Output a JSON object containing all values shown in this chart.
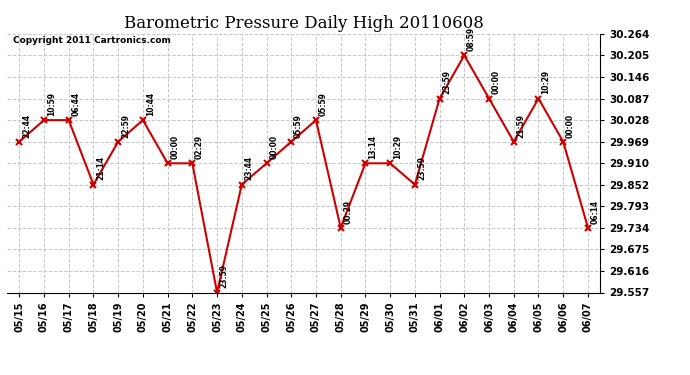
{
  "title": "Barometric Pressure Daily High 20110608",
  "copyright": "Copyright 2011 Cartronics.com",
  "x_labels": [
    "05/15",
    "05/16",
    "05/17",
    "05/18",
    "05/19",
    "05/20",
    "05/21",
    "05/22",
    "05/23",
    "05/24",
    "05/25",
    "05/26",
    "05/27",
    "05/28",
    "05/29",
    "05/30",
    "05/31",
    "06/01",
    "06/02",
    "06/03",
    "06/04",
    "06/05",
    "06/06",
    "06/07"
  ],
  "y_values": [
    29.969,
    30.028,
    30.028,
    29.852,
    29.969,
    30.028,
    29.91,
    29.91,
    29.557,
    29.852,
    29.91,
    29.969,
    30.028,
    29.734,
    29.91,
    29.91,
    29.852,
    30.087,
    30.205,
    30.087,
    29.969,
    30.087,
    29.969,
    29.734
  ],
  "time_labels": [
    "22:44",
    "10:59",
    "06:44",
    "21:14",
    "22:59",
    "10:44",
    "00:00",
    "02:29",
    "23:59",
    "23:44",
    "00:00",
    "05:59",
    "05:59",
    "00:29",
    "13:14",
    "10:29",
    "23:59",
    "23:59",
    "08:59",
    "00:00",
    "21:59",
    "10:29",
    "00:00",
    "06:14"
  ],
  "line_color": "#cc0000",
  "marker_color": "#cc0000",
  "bg_color": "#ffffff",
  "grid_color": "#c8c8c8",
  "title_fontsize": 12,
  "y_min": 29.557,
  "y_max": 30.264,
  "y_ticks": [
    29.557,
    29.616,
    29.675,
    29.734,
    29.793,
    29.852,
    29.91,
    29.969,
    30.028,
    30.087,
    30.146,
    30.205,
    30.264
  ]
}
